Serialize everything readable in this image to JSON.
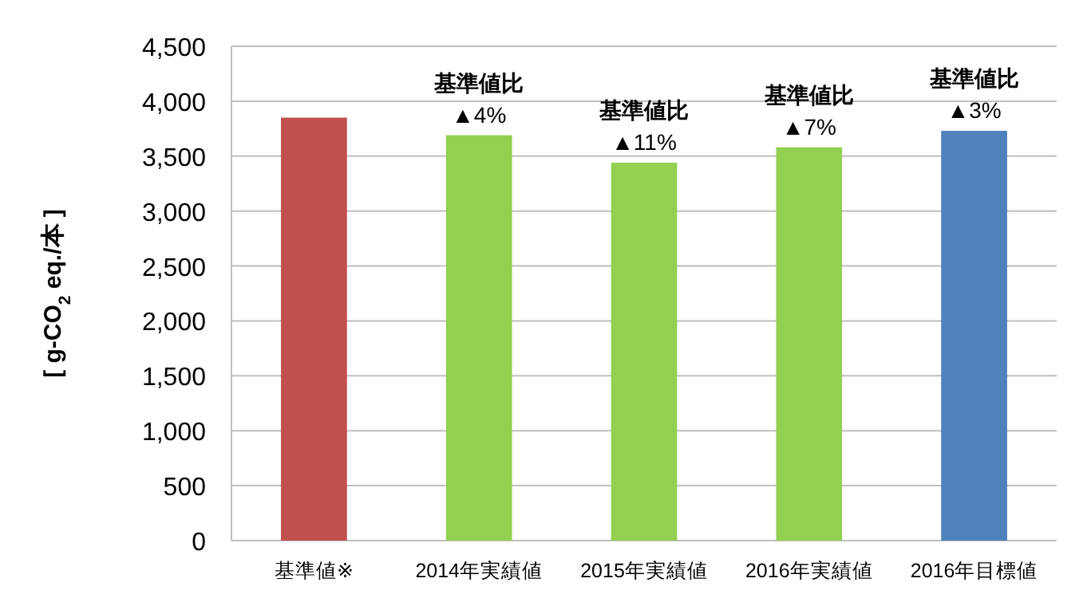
{
  "chart_data": {
    "type": "bar",
    "categories": [
      "基準値※",
      "2014年実績値",
      "2015年実績値",
      "2016年実績値",
      "2016年目標値"
    ],
    "values": [
      3850,
      3690,
      3440,
      3580,
      3730
    ],
    "colors": [
      "#c0504d",
      "#92d050",
      "#92d050",
      "#92d050",
      "#4f81bd"
    ],
    "ylabel": "[ g-CO$_{2}$ eq./本 ]",
    "ylim": [
      0,
      4500
    ],
    "yticks": [
      {
        "value": 0,
        "label": "0"
      },
      {
        "value": 500,
        "label": "500"
      },
      {
        "value": 1000,
        "label": "1,000"
      },
      {
        "value": 1500,
        "label": "1,500"
      },
      {
        "value": 2000,
        "label": "2,000"
      },
      {
        "value": 2500,
        "label": "2,500"
      },
      {
        "value": 3000,
        "label": "3,000"
      },
      {
        "value": 3500,
        "label": "3,500"
      },
      {
        "value": 4000,
        "label": "4,000"
      },
      {
        "value": 4500,
        "label": "4,500"
      }
    ],
    "grid": "y",
    "annotations": [
      {
        "text": "基準値比\n▲4%",
        "x": "2014年実績値",
        "y": 3690
      },
      {
        "text": "基準値比\n▲11%",
        "x": "2015年実績値",
        "y": 3440
      },
      {
        "text": "基準値比\n▲7%",
        "x": "2016年実績値",
        "y": 3580
      },
      {
        "text": "基準値比\n▲3%",
        "x": "2016年目標値",
        "y": 3730
      }
    ]
  }
}
